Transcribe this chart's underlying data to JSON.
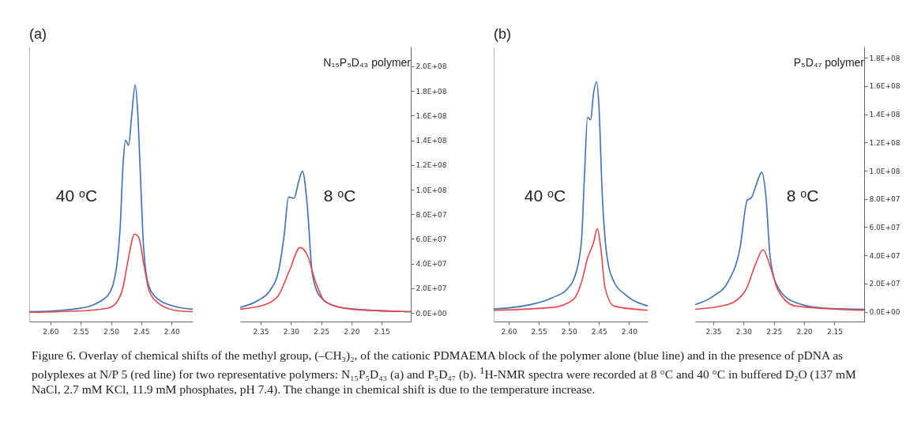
{
  "chart_data": [
    {
      "type": "line",
      "title": "(a)",
      "annotations": [
        "40 ᵒC"
      ],
      "xlim": [
        2.635,
        2.365
      ],
      "xticks": [
        {
          "value": 2.6,
          "label": "2.60"
        },
        {
          "value": 2.55,
          "label": "2.55"
        },
        {
          "value": 2.5,
          "label": "2.50"
        },
        {
          "value": 2.45,
          "label": "2.45"
        },
        {
          "value": 2.4,
          "label": "2.40"
        }
      ],
      "ylim": [
        -7000000,
        216000000
      ],
      "tick_labels": "x",
      "series": [
        {
          "color": "#3b6fba",
          "x": [
            2.635,
            2.586,
            2.538,
            2.519,
            2.504,
            2.495,
            2.49,
            2.485,
            2.48,
            2.476,
            2.471,
            2.466,
            2.46,
            2.456,
            2.451,
            2.446,
            2.437,
            2.422,
            2.393,
            2.365
          ],
          "values": [
            1000000,
            2000000,
            5000000,
            9000000,
            15000000,
            26000000,
            40000000,
            68000000,
            121000000,
            140000000,
            136000000,
            159000000,
            185000000,
            164000000,
            107000000,
            52000000,
            21000000,
            11000000,
            5000000,
            3000000
          ]
        },
        {
          "color": "#e8464a",
          "x": [
            2.635,
            2.538,
            2.504,
            2.49,
            2.48,
            2.471,
            2.461,
            2.454,
            2.446,
            2.437,
            2.422,
            2.393,
            2.365
          ],
          "values": [
            500000,
            2000000,
            4000000,
            9000000,
            21000000,
            45000000,
            64000000,
            61000000,
            40000000,
            18000000,
            8000000,
            2000000,
            1000000
          ]
        }
      ]
    },
    {
      "type": "line",
      "title": "N₁₅P₅D₄₃ polymer",
      "annotations": [
        "8 ᵒC"
      ],
      "xlim": [
        2.384,
        2.102
      ],
      "xticks": [
        {
          "value": 2.35,
          "label": "2.35"
        },
        {
          "value": 2.3,
          "label": "2.30"
        },
        {
          "value": 2.25,
          "label": "2.25"
        },
        {
          "value": 2.2,
          "label": "2.20"
        },
        {
          "value": 2.15,
          "label": "2.15"
        }
      ],
      "ylim": [
        -7000000,
        216000000
      ],
      "yticks": [
        {
          "value": 0,
          "label": "0.0E+00"
        },
        {
          "value": 20000000,
          "label": "2.0E+07"
        },
        {
          "value": 40000000,
          "label": "4.0E+07"
        },
        {
          "value": 60000000,
          "label": "6.0E+07"
        },
        {
          "value": 80000000,
          "label": "8.0E+07"
        },
        {
          "value": 100000000,
          "label": "1.0E+08"
        },
        {
          "value": 120000000,
          "label": "1.2E+08"
        },
        {
          "value": 140000000,
          "label": "1.4E+08"
        },
        {
          "value": 160000000,
          "label": "1.6E+08"
        },
        {
          "value": 180000000,
          "label": "1.8E+08"
        },
        {
          "value": 200000000,
          "label": "2.0E+08"
        }
      ],
      "series": [
        {
          "color": "#3b6fba",
          "x": [
            2.384,
            2.355,
            2.335,
            2.321,
            2.311,
            2.304,
            2.295,
            2.287,
            2.281,
            2.273,
            2.265,
            2.253,
            2.224,
            2.176,
            2.102
          ],
          "values": [
            4500000,
            10000000,
            18000000,
            33000000,
            64000000,
            94000000,
            93000000,
            107000000,
            115000000,
            87000000,
            33000000,
            14000000,
            5000000,
            2400000,
            1000000
          ]
        },
        {
          "color": "#e8464a",
          "x": [
            2.384,
            2.345,
            2.321,
            2.302,
            2.285,
            2.273,
            2.26,
            2.243,
            2.2,
            2.102
          ],
          "values": [
            3000000,
            6400000,
            14000000,
            35000000,
            53000000,
            47000000,
            26000000,
            9000000,
            3000000,
            1000000
          ]
        }
      ]
    },
    {
      "type": "line",
      "title": "(b)",
      "annotations": [
        "40 ᵒC"
      ],
      "xlim": [
        2.625,
        2.369
      ],
      "xticks": [
        {
          "value": 2.6,
          "label": "2.60"
        },
        {
          "value": 2.55,
          "label": "2.55"
        },
        {
          "value": 2.5,
          "label": "2.50"
        },
        {
          "value": 2.45,
          "label": "2.45"
        },
        {
          "value": 2.4,
          "label": "2.40"
        }
      ],
      "ylim": [
        -7000000,
        188000000
      ],
      "tick_labels": "x",
      "series": [
        {
          "color": "#3b6fba",
          "x": [
            2.625,
            2.576,
            2.527,
            2.503,
            2.488,
            2.479,
            2.474,
            2.469,
            2.464,
            2.459,
            2.454,
            2.45,
            2.445,
            2.437,
            2.425,
            2.406,
            2.369
          ],
          "values": [
            2000000,
            4000000,
            10000000,
            16000000,
            28000000,
            51000000,
            98000000,
            138000000,
            136000000,
            155000000,
            163000000,
            145000000,
            87000000,
            40000000,
            21000000,
            12000000,
            4000000
          ]
        },
        {
          "color": "#e8464a",
          "x": [
            2.625,
            2.527,
            2.493,
            2.479,
            2.469,
            2.459,
            2.453,
            2.447,
            2.44,
            2.425,
            2.369
          ],
          "values": [
            1000000,
            3000000,
            8500000,
            21000000,
            38000000,
            49000000,
            59000000,
            45000000,
            17000000,
            4000000,
            1000000
          ]
        }
      ]
    },
    {
      "type": "line",
      "title": "P₅D₄₇ polymer",
      "annotations": [
        "8 ᵒC",
        "Figure 6. Overlay of chemical shifts of the methyl group, (–CH₃)₂, of the cationic PDMAEMA block of the polymer alone (blue line) and in the presence of pDNA as polyplexes at N/P 5 (red line) for two representative polymers: N₁₅P₅D₄₃ (a) and P₅D₄₇ (b). $^{1}$H-NMR spectra were recorded at 8 °C and 40 °C in buffered D₂O (137 mM NaCl, 2.7 mM KCl, 11.9 mM phosphates, pH 7.4). The change in chemical shift is due to the temperature increase."
      ],
      "xlim": [
        2.38,
        2.101
      ],
      "xticks": [
        {
          "value": 2.35,
          "label": "2.35"
        },
        {
          "value": 2.3,
          "label": "2.30"
        },
        {
          "value": 2.25,
          "label": "2.25"
        },
        {
          "value": 2.2,
          "label": "2.20"
        },
        {
          "value": 2.15,
          "label": "2.15"
        }
      ],
      "ylim": [
        -7000000,
        188000000
      ],
      "yticks": [
        {
          "value": 0,
          "label": "0.0E+00"
        },
        {
          "value": 20000000,
          "label": "2.0E+07"
        },
        {
          "value": 40000000,
          "label": "4.0E+07"
        },
        {
          "value": 60000000,
          "label": "6.0E+07"
        },
        {
          "value": 80000000,
          "label": "8.0E+07"
        },
        {
          "value": 100000000,
          "label": "1.0E+08"
        },
        {
          "value": 120000000,
          "label": "1.2E+08"
        },
        {
          "value": 140000000,
          "label": "1.4E+08"
        },
        {
          "value": 160000000,
          "label": "1.6E+08"
        },
        {
          "value": 180000000,
          "label": "1.8E+08"
        }
      ],
      "series": [
        {
          "color": "#3b6fba",
          "x": [
            2.38,
            2.35,
            2.326,
            2.306,
            2.294,
            2.287,
            2.28,
            2.27,
            2.263,
            2.256,
            2.243,
            2.214,
            2.166,
            2.101
          ],
          "values": [
            5000000,
            11000000,
            21000000,
            45000000,
            79000000,
            81000000,
            89000000,
            99000000,
            81000000,
            38000000,
            17000000,
            6400000,
            2500000,
            1700000
          ]
        },
        {
          "color": "#e8464a",
          "x": [
            2.38,
            2.326,
            2.297,
            2.28,
            2.268,
            2.256,
            2.243,
            2.214,
            2.101
          ],
          "values": [
            1700000,
            5000000,
            15000000,
            34000000,
            44000000,
            32000000,
            15000000,
            4000000,
            1000000
          ]
        }
      ]
    }
  ]
}
